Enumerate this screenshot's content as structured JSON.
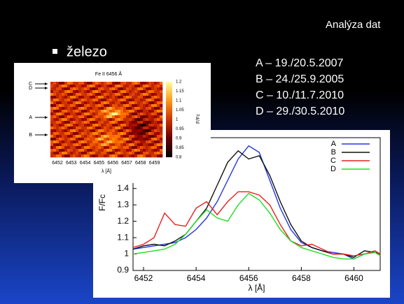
{
  "slide": {
    "title": "Analýza dat",
    "bullet": "železo",
    "dates": [
      "A – 19./20.5.2007",
      "B – 24./25.9.2005",
      "C – 10./11.7.2010",
      "D – 29./30.5.2010"
    ]
  },
  "heatmap": {
    "title": "Fe II 6456 Å",
    "row_labels": [
      "C",
      "D",
      "A",
      "B"
    ],
    "xticks": [
      "6452",
      "6453",
      "6454",
      "6455",
      "6456",
      "6457",
      "6458",
      "6459"
    ],
    "colorbar_ticks": [
      "1.2",
      "1.15",
      "1.1",
      "1.05",
      "1",
      "0.95",
      "0.9",
      "0.85",
      "0.8"
    ],
    "xlabel": "λ [Å]",
    "ylabel": "F/Fc"
  },
  "chart_data": {
    "type": "line",
    "xlabel": "λ [Å]",
    "ylabel": "F/Fc",
    "x": [
      6451.6,
      6452,
      6452.4,
      6452.8,
      6453.2,
      6453.6,
      6454,
      6454.4,
      6454.8,
      6455.2,
      6455.6,
      6456,
      6456.4,
      6456.8,
      6457.2,
      6457.6,
      6458,
      6458.4,
      6458.8,
      6459.2,
      6459.6,
      6460,
      6460.4,
      6460.8,
      6461
    ],
    "xlim": [
      6451.6,
      6461
    ],
    "xticks": [
      6452,
      6454,
      6456,
      6458,
      6460
    ],
    "ylim": [
      0.9,
      1.71
    ],
    "yticks": [
      0.9,
      1,
      1.1,
      1.2,
      1.3,
      1.4
    ],
    "legend": "upper right",
    "series": [
      {
        "name": "A",
        "color": "#2236e6",
        "values": [
          1.03,
          1.04,
          1.05,
          1.06,
          1.07,
          1.1,
          1.15,
          1.22,
          1.32,
          1.45,
          1.58,
          1.66,
          1.62,
          1.45,
          1.28,
          1.15,
          1.07,
          1.04,
          1.02,
          1.01,
          1.0,
          0.97,
          1.0,
          1.01,
          1.0
        ]
      },
      {
        "name": "B",
        "color": "#111111",
        "values": [
          1.03,
          1.05,
          1.06,
          1.05,
          1.08,
          1.12,
          1.2,
          1.28,
          1.42,
          1.56,
          1.63,
          1.58,
          1.6,
          1.48,
          1.32,
          1.18,
          1.08,
          1.04,
          1.02,
          1.0,
          1.0,
          0.98,
          1.02,
          1.01,
          1.0
        ]
      },
      {
        "name": "C",
        "color": "#e82020",
        "values": [
          1.04,
          1.06,
          1.1,
          1.25,
          1.18,
          1.17,
          1.28,
          1.32,
          1.24,
          1.32,
          1.38,
          1.38,
          1.36,
          1.3,
          1.18,
          1.08,
          1.05,
          1.06,
          1.03,
          1.0,
          1.0,
          0.99,
          1.0,
          1.02,
          1.0
        ]
      },
      {
        "name": "D",
        "color": "#22dd22",
        "values": [
          1.0,
          1.01,
          1.02,
          1.03,
          1.06,
          1.12,
          1.2,
          1.27,
          1.22,
          1.2,
          1.3,
          1.37,
          1.33,
          1.25,
          1.15,
          1.08,
          1.04,
          1.02,
          1.0,
          0.98,
          0.97,
          0.97,
          1.0,
          1.01,
          0.99
        ]
      }
    ]
  }
}
